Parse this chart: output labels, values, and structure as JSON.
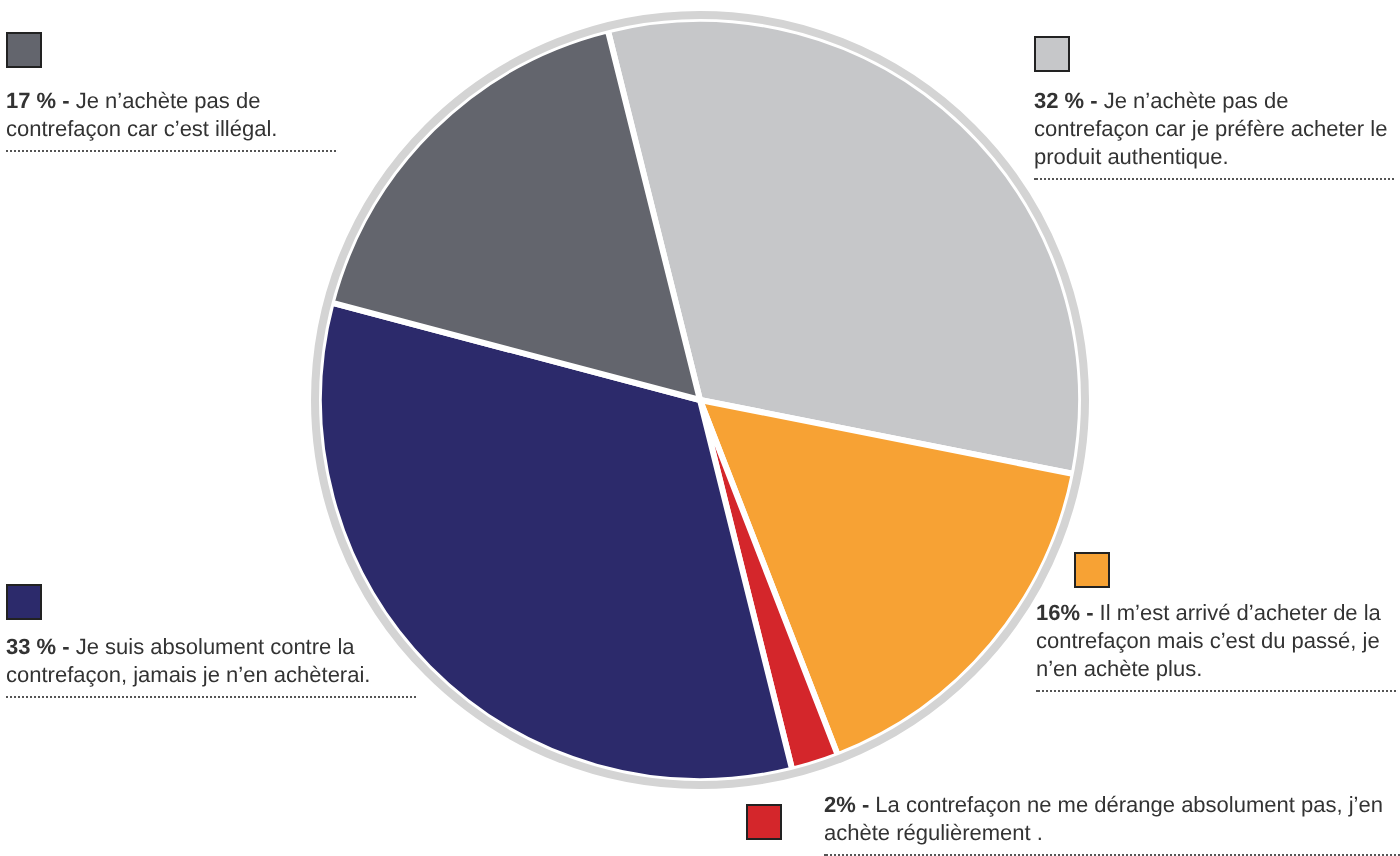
{
  "chart_data": {
    "type": "pie",
    "categories": [
      "Je n’achète pas de contrefaçon car je préfère acheter le produit authentique.",
      "Il m’est arrivé d’acheter de la contrefaçon mais c’est du passé, je n’en achète plus.",
      "La contrefaçon ne me dérange absolument pas, j’en achète régulièrement .",
      "Je suis absolument contre la contrefaçon, jamais je n’en achèterai.",
      "Je n’achète pas de contrefaçon car c’est illégal."
    ],
    "values": [
      32,
      16,
      2,
      33,
      17
    ],
    "value_labels": [
      "32 % -",
      "16% -",
      "2% -",
      "33 % -",
      "17 % -"
    ],
    "legend": "right",
    "colors": [
      "#c6c7c9",
      "#f7a234",
      "#d4262b",
      "#2c2a6b",
      "#63656d"
    ]
  }
}
